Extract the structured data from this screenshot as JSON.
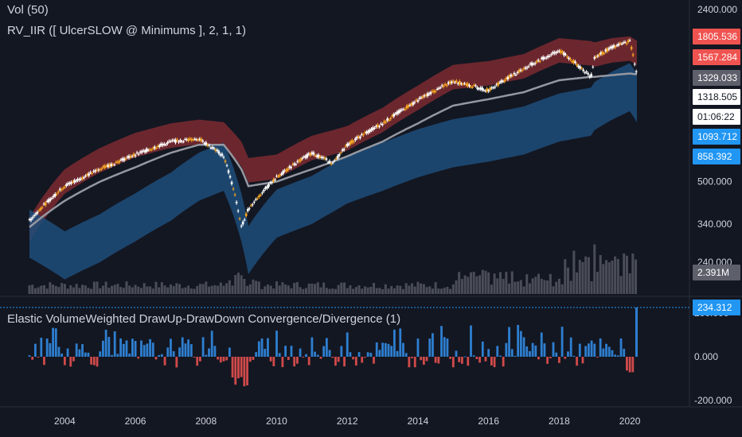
{
  "legends": {
    "volume": "Vol (50)",
    "indicator": "RV_IIR ([ UlcerSLOW @ Minimums ], 2, 1, 1)",
    "oscillator": "Elastic VolumeWeighted DrawUp-DrawDown Convergence/Divergence (1)"
  },
  "colors": {
    "background": "#131722",
    "upper_band": "#8b2e33",
    "lower_band": "#1f4e7a",
    "midline": "#9598a1",
    "candle_up": "#ffffff",
    "candle_down": "#f5a623",
    "volume": "#4a4d57",
    "osc_pos": "#2e7fd0",
    "osc_neg": "#d04a4a",
    "tag_red": "#ef5350",
    "tag_blue": "#2196f3"
  },
  "price_axis": {
    "ticks": [
      "2400.000",
      "500.000",
      "340.000",
      "240.000"
    ],
    "tags": [
      {
        "text": "1805.536",
        "style": "red"
      },
      {
        "text": "1567.284",
        "style": "red"
      },
      {
        "text": "1329.033",
        "style": "gray"
      },
      {
        "text": "1318.505",
        "style": "white"
      },
      {
        "text": "01:06:22",
        "style": "white-plain"
      },
      {
        "text": "1093.712",
        "style": "blue"
      },
      {
        "text": "858.392",
        "style": "blue"
      },
      {
        "text": "2.391M",
        "style": "gray"
      }
    ]
  },
  "osc_axis": {
    "ticks": [
      "200.000",
      "0.000",
      "-200.000"
    ],
    "tag": "234.312"
  },
  "time_axis": {
    "labels": [
      "2004",
      "2006",
      "2008",
      "2010",
      "2012",
      "2014",
      "2016",
      "2018",
      "2020"
    ]
  },
  "chart_data": {
    "type": "line",
    "log_scale": true,
    "x": [
      2003,
      2004,
      2005,
      2006,
      2007,
      2007.8,
      2008.5,
      2009,
      2009.2,
      2010,
      2011,
      2011.6,
      2012,
      2013,
      2014,
      2015,
      2016,
      2017,
      2018,
      2018.9,
      2019,
      2019.5,
      2020,
      2020.2
    ],
    "series": [
      {
        "name": "price",
        "values": [
          350,
          480,
          560,
          640,
          720,
          740,
          630,
          330,
          390,
          520,
          650,
          590,
          700,
          850,
          1050,
          1250,
          1150,
          1400,
          1650,
          1300,
          1550,
          1700,
          1800,
          1318.505
        ]
      },
      {
        "name": "upper band",
        "values": [
          360,
          560,
          680,
          780,
          850,
          880,
          860,
          720,
          620,
          640,
          760,
          800,
          830,
          980,
          1200,
          1450,
          1500,
          1600,
          1850,
          1800,
          1780,
          1850,
          1880,
          1805.536
        ]
      },
      {
        "name": "mid line",
        "values": [
          330,
          420,
          500,
          570,
          650,
          700,
          700,
          560,
          480,
          500,
          560,
          600,
          630,
          720,
          850,
          1000,
          1060,
          1130,
          1260,
          1300,
          1300,
          1320,
          1340,
          1329.033
        ]
      },
      {
        "name": "lower band",
        "values": [
          250,
          205,
          240,
          290,
          350,
          420,
          460,
          290,
          215,
          300,
          340,
          380,
          410,
          460,
          520,
          570,
          600,
          640,
          720,
          760,
          800,
          880,
          950,
          858.392
        ]
      }
    ],
    "price_tick_values": [
      2400,
      500,
      340,
      240
    ],
    "volume_last": "2.391M",
    "oscillator": {
      "range": [
        -200,
        234.312
      ],
      "last": 234.312,
      "ticks": [
        200,
        0,
        -200
      ]
    }
  }
}
